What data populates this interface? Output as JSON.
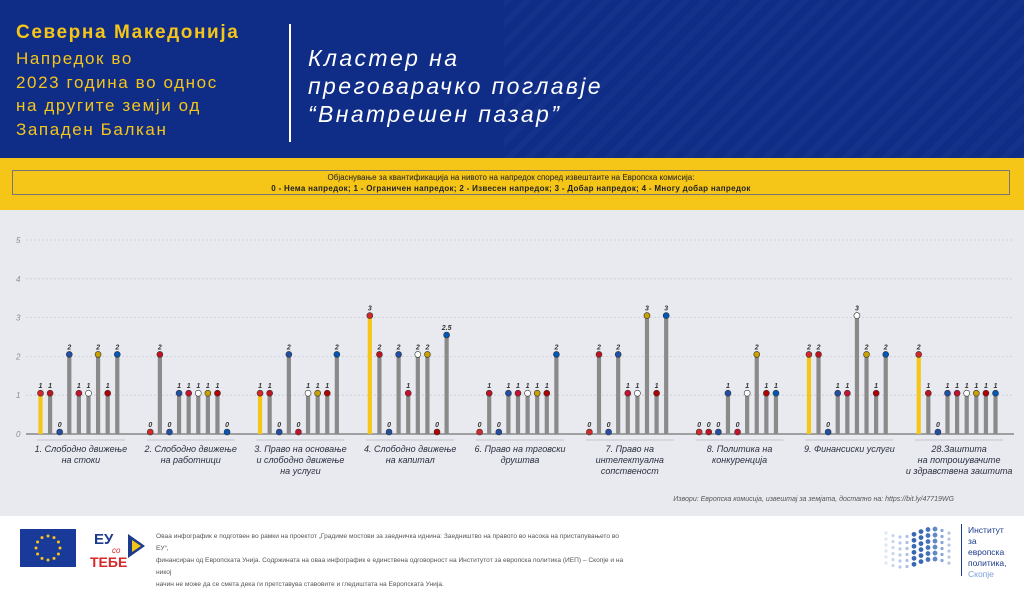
{
  "header": {
    "country": "Северна Македонија",
    "subtitle_lines": [
      "Напредок во",
      "2023 година во однос",
      "на другите земји од",
      "Западен Балкан"
    ],
    "cluster_lines": [
      "Кластер на",
      "преговарачко поглавје",
      "“Внатрешен пазар”"
    ]
  },
  "legend": {
    "line1": "Објаснување за квантификација  на нивото на напредок според извештаите на Европска комисија:",
    "line2": "0 - Нема напредок; 1 - Ограничен напредок; 2 - Извесен напредок; 3 - Добар напредок; 4 - Многу добар напредок"
  },
  "chart_data": {
    "type": "bar",
    "ylim": [
      0,
      5
    ],
    "yticks": [
      0,
      1,
      2,
      3,
      4,
      5
    ],
    "grid": true,
    "highlight_color": "#f5c518",
    "bar_color": "#8a8a8a",
    "flag_icons": [
      "north-macedonia-flag-icon",
      "albania-flag-icon",
      "bosnia-herzegovina-flag-icon",
      "kosovo-flag-icon",
      "serbia-flag-icon",
      "georgia-flag-icon",
      "moldova-flag-icon",
      "montenegro-flag-icon",
      "ukraine-flag-icon"
    ],
    "flag_colors": [
      "#d62828",
      "#c1121f",
      "#1f4fa8",
      "#1f4fa8",
      "#c8102e",
      "#ffffff",
      "#c8a000",
      "#b30000",
      "#0057b7"
    ],
    "categories": [
      [
        "1. Слободно движење",
        "на стоки"
      ],
      [
        "2. Слободно движење",
        "на работници"
      ],
      [
        "3. Право на основање",
        "и слободно движење",
        "на услуги"
      ],
      [
        "4. Слободно движење",
        "на капитал"
      ],
      [
        "6. Право на трговски",
        "друштва"
      ],
      [
        "7. Право на",
        "интелектуална",
        "сопственост"
      ],
      [
        "8. Политика на",
        "конкуренција"
      ],
      [
        "9. Финансиски услуги"
      ],
      [
        "28.Заштита",
        "на потрошувачите",
        "и здравствена заштита"
      ]
    ],
    "values": [
      [
        1,
        1,
        0,
        2,
        1,
        1,
        2,
        1,
        2
      ],
      [
        0,
        2,
        0,
        1,
        1,
        1,
        1,
        1,
        0
      ],
      [
        1,
        1,
        0,
        2,
        0,
        1,
        1,
        1,
        2
      ],
      [
        3,
        2,
        0,
        2,
        1,
        2,
        2,
        0,
        2.5
      ],
      [
        0,
        1,
        0,
        1,
        1,
        1,
        1,
        1,
        2
      ],
      [
        0,
        2,
        0,
        2,
        1,
        1,
        3,
        1,
        3
      ],
      [
        0,
        0,
        0,
        1,
        0,
        1,
        2,
        1,
        1
      ],
      [
        2,
        2,
        0,
        1,
        1,
        3,
        2,
        1,
        2
      ],
      [
        2,
        1,
        0,
        1,
        1,
        1,
        1,
        1,
        1
      ]
    ]
  },
  "source": "Извори: Европска комисија, извештај за земјата, достапно на: https://bit.ly/47719WG",
  "footer": {
    "eyco_top": "ЕУ",
    "eyco_mid": "со",
    "eyco_bottom": "ТЕБЕ",
    "disclaimer_lines": [
      "Оваа инфографик е подготвен во рамки на проектот „Градиме мостови за заедничка иднина: Заедништво на правото во насока на пристапувањето во ЕУ“,",
      "финансиран од Европската Унија. Содржината на оваа инфографик е единствена одговорност на Институтот за европска политика (ИЕП) – Скопје и на никој",
      "начин не може да се смета дека ги претставува ставовите и гледиштата на Европската Унија."
    ],
    "institute_lines": [
      "Институт",
      "за",
      "европска",
      "политика,"
    ],
    "institute_city": "Скопје"
  }
}
